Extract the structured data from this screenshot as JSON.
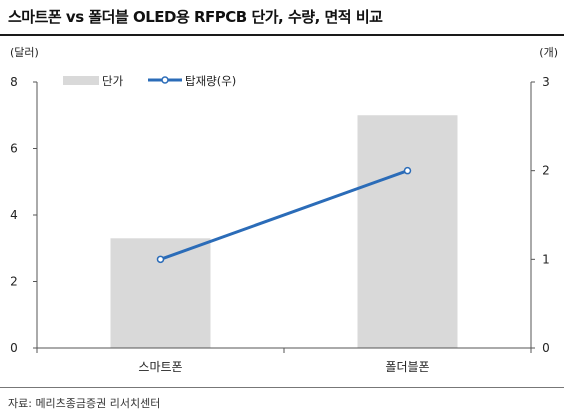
{
  "title": "스마트폰 vs 폴더블 OLED용 RFPCB 단가, 수량, 면적 비교",
  "source": "자료: 메리츠종금증권 리서치센터",
  "colors": {
    "bar": "#d9d9d9",
    "line": "#2b6cb8",
    "axis": "#555555"
  },
  "chart_data": {
    "type": "bar",
    "categories": [
      "스마트폰",
      "폴더블폰"
    ],
    "left_axis_unit": "(달러)",
    "right_axis_unit": "(개)",
    "left_ylim": [
      0,
      8
    ],
    "left_ticks": [
      "0",
      "2",
      "4",
      "6",
      "8"
    ],
    "right_ylim": [
      0,
      3
    ],
    "right_ticks": [
      "0",
      "1",
      "2",
      "3"
    ],
    "legend_position": "top-left",
    "series": [
      {
        "name": "단가",
        "type": "bar",
        "axis": "left",
        "values": [
          3.3,
          7.0
        ]
      },
      {
        "name": "탑재량(우)",
        "type": "line",
        "axis": "right",
        "values": [
          1,
          2
        ]
      }
    ]
  }
}
